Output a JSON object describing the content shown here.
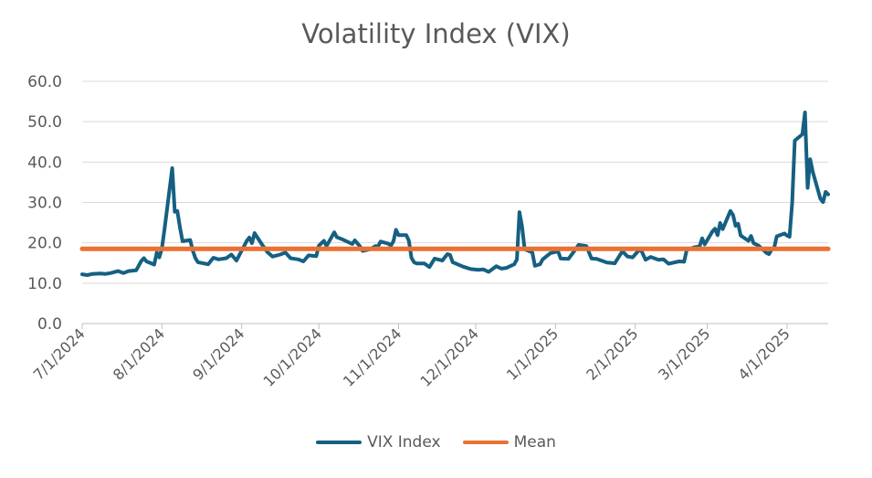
{
  "chart_data": {
    "type": "line",
    "title": "Volatility Index (VIX)",
    "xlabel": "",
    "ylabel": "",
    "ylim": [
      0,
      60
    ],
    "yticks": [
      "0.0",
      "10.0",
      "20.0",
      "30.0",
      "40.0",
      "50.0",
      "60.0"
    ],
    "xticks": [
      "7/1/2024",
      "8/1/2024",
      "9/1/2024",
      "10/1/2024",
      "11/1/2024",
      "12/1/2024",
      "1/1/2025",
      "2/1/2025",
      "3/1/2025",
      "4/1/2025"
    ],
    "grid": "horizontal",
    "legend_position": "bottom",
    "series": [
      {
        "name": "VIX Index",
        "color": "#156082",
        "points": [
          [
            "2024-07-01",
            12.2
          ],
          [
            "2024-07-03",
            12.0
          ],
          [
            "2024-07-05",
            12.3
          ],
          [
            "2024-07-08",
            12.4
          ],
          [
            "2024-07-10",
            12.3
          ],
          [
            "2024-07-12",
            12.5
          ],
          [
            "2024-07-15",
            13.0
          ],
          [
            "2024-07-17",
            12.5
          ],
          [
            "2024-07-19",
            13.0
          ],
          [
            "2024-07-22",
            13.2
          ],
          [
            "2024-07-24",
            15.5
          ],
          [
            "2024-07-25",
            16.2
          ],
          [
            "2024-07-26",
            15.4
          ],
          [
            "2024-07-29",
            14.6
          ],
          [
            "2024-07-30",
            17.6
          ],
          [
            "2024-07-31",
            16.4
          ],
          [
            "2024-08-01",
            18.6
          ],
          [
            "2024-08-02",
            23.4
          ],
          [
            "2024-08-05",
            38.5
          ],
          [
            "2024-08-06",
            27.7
          ],
          [
            "2024-08-07",
            27.9
          ],
          [
            "2024-08-08",
            23.8
          ],
          [
            "2024-08-09",
            20.4
          ],
          [
            "2024-08-12",
            20.7
          ],
          [
            "2024-08-13",
            18.1
          ],
          [
            "2024-08-14",
            16.2
          ],
          [
            "2024-08-15",
            15.2
          ],
          [
            "2024-08-19",
            14.7
          ],
          [
            "2024-08-21",
            16.3
          ],
          [
            "2024-08-23",
            15.9
          ],
          [
            "2024-08-26",
            16.2
          ],
          [
            "2024-08-28",
            17.1
          ],
          [
            "2024-08-30",
            15.6
          ],
          [
            "2024-09-03",
            20.5
          ],
          [
            "2024-09-04",
            21.3
          ],
          [
            "2024-09-05",
            19.9
          ],
          [
            "2024-09-06",
            22.4
          ],
          [
            "2024-09-09",
            19.5
          ],
          [
            "2024-09-11",
            17.7
          ],
          [
            "2024-09-13",
            16.6
          ],
          [
            "2024-09-16",
            17.1
          ],
          [
            "2024-09-18",
            17.6
          ],
          [
            "2024-09-20",
            16.2
          ],
          [
            "2024-09-23",
            15.9
          ],
          [
            "2024-09-25",
            15.4
          ],
          [
            "2024-09-27",
            16.9
          ],
          [
            "2024-09-30",
            16.7
          ],
          [
            "2024-10-01",
            19.3
          ],
          [
            "2024-10-03",
            20.5
          ],
          [
            "2024-10-04",
            19.2
          ],
          [
            "2024-10-07",
            22.6
          ],
          [
            "2024-10-08",
            21.4
          ],
          [
            "2024-10-10",
            20.9
          ],
          [
            "2024-10-14",
            19.7
          ],
          [
            "2024-10-15",
            20.6
          ],
          [
            "2024-10-17",
            19.1
          ],
          [
            "2024-10-18",
            18.0
          ],
          [
            "2024-10-21",
            18.4
          ],
          [
            "2024-10-23",
            19.2
          ],
          [
            "2024-10-24",
            19.1
          ],
          [
            "2024-10-25",
            20.3
          ],
          [
            "2024-10-28",
            19.8
          ],
          [
            "2024-10-29",
            19.3
          ],
          [
            "2024-10-30",
            20.4
          ],
          [
            "2024-10-31",
            23.2
          ],
          [
            "2024-11-01",
            21.9
          ],
          [
            "2024-11-04",
            21.9
          ],
          [
            "2024-11-05",
            20.5
          ],
          [
            "2024-11-06",
            16.3
          ],
          [
            "2024-11-07",
            15.2
          ],
          [
            "2024-11-08",
            14.9
          ],
          [
            "2024-11-11",
            14.9
          ],
          [
            "2024-11-13",
            14.0
          ],
          [
            "2024-11-15",
            16.1
          ],
          [
            "2024-11-18",
            15.6
          ],
          [
            "2024-11-20",
            17.2
          ],
          [
            "2024-11-21",
            17.0
          ],
          [
            "2024-11-22",
            15.2
          ],
          [
            "2024-11-26",
            14.1
          ],
          [
            "2024-11-29",
            13.5
          ],
          [
            "2024-12-02",
            13.3
          ],
          [
            "2024-12-04",
            13.4
          ],
          [
            "2024-12-06",
            12.8
          ],
          [
            "2024-12-09",
            14.2
          ],
          [
            "2024-12-11",
            13.6
          ],
          [
            "2024-12-13",
            13.8
          ],
          [
            "2024-12-16",
            14.7
          ],
          [
            "2024-12-17",
            15.9
          ],
          [
            "2024-12-18",
            27.6
          ],
          [
            "2024-12-19",
            24.1
          ],
          [
            "2024-12-20",
            18.4
          ],
          [
            "2024-12-23",
            17.6
          ],
          [
            "2024-12-24",
            14.3
          ],
          [
            "2024-12-26",
            14.7
          ],
          [
            "2024-12-27",
            15.9
          ],
          [
            "2024-12-30",
            17.4
          ],
          [
            "2025-01-02",
            17.9
          ],
          [
            "2025-01-03",
            16.1
          ],
          [
            "2025-01-06",
            16.0
          ],
          [
            "2025-01-08",
            17.7
          ],
          [
            "2025-01-10",
            19.5
          ],
          [
            "2025-01-13",
            19.2
          ],
          [
            "2025-01-15",
            16.1
          ],
          [
            "2025-01-17",
            16.0
          ],
          [
            "2025-01-21",
            15.1
          ],
          [
            "2025-01-23",
            15.0
          ],
          [
            "2025-01-24",
            14.9
          ],
          [
            "2025-01-27",
            17.9
          ],
          [
            "2025-01-29",
            16.6
          ],
          [
            "2025-01-31",
            16.4
          ],
          [
            "2025-02-03",
            18.6
          ],
          [
            "2025-02-05",
            15.8
          ],
          [
            "2025-02-07",
            16.5
          ],
          [
            "2025-02-10",
            15.8
          ],
          [
            "2025-02-12",
            15.9
          ],
          [
            "2025-02-14",
            14.8
          ],
          [
            "2025-02-18",
            15.4
          ],
          [
            "2025-02-20",
            15.3
          ],
          [
            "2025-02-21",
            18.2
          ],
          [
            "2025-02-24",
            18.9
          ],
          [
            "2025-02-26",
            19.1
          ],
          [
            "2025-02-27",
            21.1
          ],
          [
            "2025-02-28",
            19.6
          ],
          [
            "2025-03-03",
            22.8
          ],
          [
            "2025-03-04",
            23.5
          ],
          [
            "2025-03-05",
            21.9
          ],
          [
            "2025-03-06",
            24.9
          ],
          [
            "2025-03-07",
            23.4
          ],
          [
            "2025-03-10",
            27.9
          ],
          [
            "2025-03-11",
            26.9
          ],
          [
            "2025-03-12",
            24.2
          ],
          [
            "2025-03-13",
            24.7
          ],
          [
            "2025-03-14",
            21.8
          ],
          [
            "2025-03-17",
            20.5
          ],
          [
            "2025-03-18",
            21.7
          ],
          [
            "2025-03-19",
            19.9
          ],
          [
            "2025-03-21",
            19.3
          ],
          [
            "2025-03-24",
            17.5
          ],
          [
            "2025-03-25",
            17.2
          ],
          [
            "2025-03-26",
            18.3
          ],
          [
            "2025-03-27",
            18.7
          ],
          [
            "2025-03-28",
            21.6
          ],
          [
            "2025-03-31",
            22.3
          ],
          [
            "2025-04-01",
            21.8
          ],
          [
            "2025-04-02",
            21.5
          ],
          [
            "2025-04-03",
            30.0
          ],
          [
            "2025-04-04",
            45.3
          ],
          [
            "2025-04-07",
            46.9
          ],
          [
            "2025-04-08",
            52.3
          ],
          [
            "2025-04-09",
            33.6
          ],
          [
            "2025-04-10",
            40.7
          ],
          [
            "2025-04-11",
            37.6
          ],
          [
            "2025-04-14",
            30.9
          ],
          [
            "2025-04-15",
            30.1
          ],
          [
            "2025-04-16",
            32.6
          ],
          [
            "2025-04-17",
            32.0
          ]
        ]
      },
      {
        "name": "Mean",
        "color": "#E97132",
        "points": [
          [
            "2024-07-01",
            18.5
          ],
          [
            "2025-04-17",
            18.5
          ]
        ]
      }
    ]
  },
  "legend": {
    "vix_label": "VIX Index",
    "mean_label": "Mean"
  }
}
